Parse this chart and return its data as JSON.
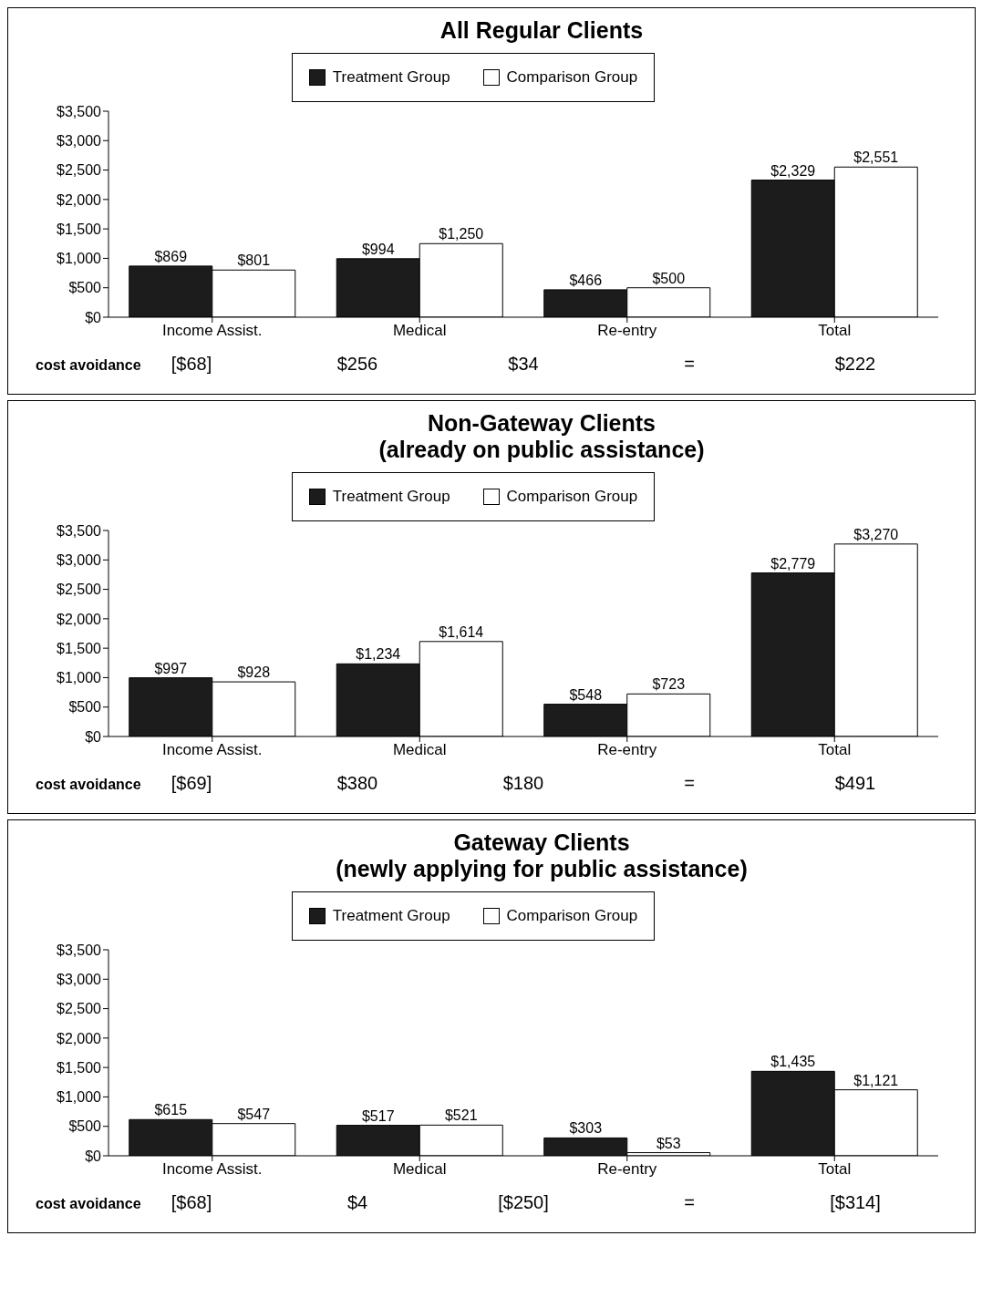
{
  "chart_data": [
    {
      "type": "bar",
      "title": "All Regular Clients",
      "categories": [
        "Income Assist.",
        "Medical",
        "Re-entry",
        "Total"
      ],
      "series": [
        {
          "name": "Treatment Group",
          "color": "#1c1c1c",
          "values": [
            869,
            994,
            466,
            2329
          ],
          "value_labels": [
            "$869",
            "$994",
            "$466",
            "$2,329"
          ]
        },
        {
          "name": "Comparison Group",
          "color": "#ffffff",
          "values": [
            801,
            1250,
            500,
            2551
          ],
          "value_labels": [
            "$801",
            "$1,250",
            "$500",
            "$2,551"
          ]
        }
      ],
      "ylim": [
        0,
        3500
      ],
      "yticks": [
        {
          "value": 0,
          "label": "$0"
        },
        {
          "value": 500,
          "label": "$500"
        },
        {
          "value": 1000,
          "label": "$1,000"
        },
        {
          "value": 1500,
          "label": "$1,500"
        },
        {
          "value": 2000,
          "label": "$2,000"
        },
        {
          "value": 2500,
          "label": "$2,500"
        },
        {
          "value": 3000,
          "label": "$3,000"
        },
        {
          "value": 3500,
          "label": "$3,500"
        }
      ],
      "legend": "top",
      "annotations": [
        "cost avoidance",
        "[$68]",
        "$256",
        "$34",
        "=",
        "$222"
      ]
    },
    {
      "type": "bar",
      "title": "Non-Gateway Clients",
      "subtitle": "(already on public assistance)",
      "categories": [
        "Income Assist.",
        "Medical",
        "Re-entry",
        "Total"
      ],
      "series": [
        {
          "name": "Treatment Group",
          "color": "#1c1c1c",
          "values": [
            997,
            1234,
            548,
            2779
          ],
          "value_labels": [
            "$997",
            "$1,234",
            "$548",
            "$2,779"
          ]
        },
        {
          "name": "Comparison Group",
          "color": "#ffffff",
          "values": [
            928,
            1614,
            723,
            3270
          ],
          "value_labels": [
            "$928",
            "$1,614",
            "$723",
            "$3,270"
          ]
        }
      ],
      "ylim": [
        0,
        3500
      ],
      "yticks": [
        {
          "value": 0,
          "label": "$0"
        },
        {
          "value": 500,
          "label": "$500"
        },
        {
          "value": 1000,
          "label": "$1,000"
        },
        {
          "value": 1500,
          "label": "$1,500"
        },
        {
          "value": 2000,
          "label": "$2,000"
        },
        {
          "value": 2500,
          "label": "$2,500"
        },
        {
          "value": 3000,
          "label": "$3,000"
        },
        {
          "value": 3500,
          "label": "$3,500"
        }
      ],
      "legend": "top",
      "annotations": [
        "cost avoidance",
        "[$69]",
        "$380",
        "$180",
        "=",
        "$491"
      ]
    },
    {
      "type": "bar",
      "title": "Gateway Clients",
      "subtitle": "(newly applying for public assistance)",
      "categories": [
        "Income Assist.",
        "Medical",
        "Re-entry",
        "Total"
      ],
      "series": [
        {
          "name": "Treatment Group",
          "color": "#1c1c1c",
          "values": [
            615,
            517,
            303,
            1435
          ],
          "value_labels": [
            "$615",
            "$517",
            "$303",
            "$1,435"
          ]
        },
        {
          "name": "Comparison Group",
          "color": "#ffffff",
          "values": [
            547,
            521,
            53,
            1121
          ],
          "value_labels": [
            "$547",
            "$521",
            "$53",
            "$1,121"
          ]
        }
      ],
      "ylim": [
        0,
        3500
      ],
      "yticks": [
        {
          "value": 0,
          "label": "$0"
        },
        {
          "value": 500,
          "label": "$500"
        },
        {
          "value": 1000,
          "label": "$1,000"
        },
        {
          "value": 1500,
          "label": "$1,500"
        },
        {
          "value": 2000,
          "label": "$2,000"
        },
        {
          "value": 2500,
          "label": "$2,500"
        },
        {
          "value": 3000,
          "label": "$3,000"
        },
        {
          "value": 3500,
          "label": "$3,500"
        }
      ],
      "legend": "top",
      "annotations": [
        "cost avoidance",
        "[$68]",
        "$4",
        "[$250]",
        "=",
        "[$314]"
      ]
    }
  ]
}
